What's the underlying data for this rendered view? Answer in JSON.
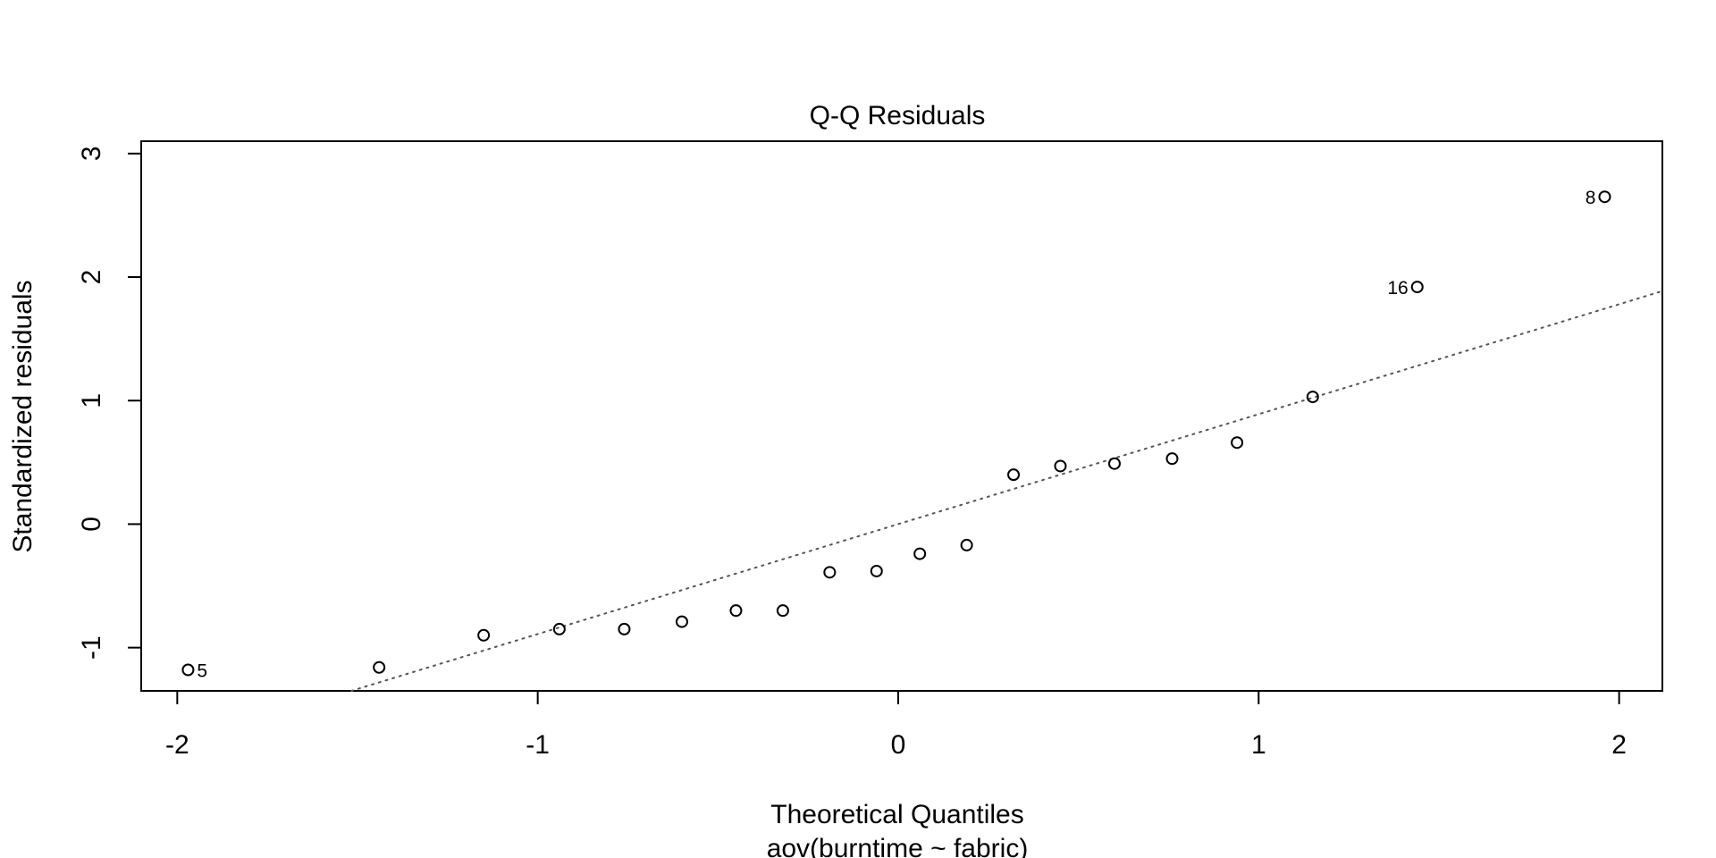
{
  "chart_data": {
    "type": "scatter",
    "title": "Q-Q Residuals",
    "xlabel": "Theoretical Quantiles",
    "xlabel_sub": "aov(burntime ~ fabric)",
    "ylabel": "Standardized residuals",
    "xlim": [
      -2.1,
      2.12
    ],
    "ylim": [
      -1.35,
      3.1
    ],
    "x_ticks": [
      -2,
      -1,
      0,
      1,
      2
    ],
    "x_tick_labels": [
      "-2",
      "-1",
      "0",
      "1",
      "2"
    ],
    "y_ticks": [
      -1,
      0,
      1,
      2,
      3
    ],
    "y_tick_labels": [
      "-1",
      "0",
      "1",
      "2",
      "3"
    ],
    "reference_line": {
      "style": "dotted",
      "color": "#555555",
      "intercept": 0.0,
      "slope": 0.89
    },
    "points": [
      {
        "x": -1.97,
        "y": -1.18,
        "label": "5"
      },
      {
        "x": -1.44,
        "y": -1.16,
        "label": ""
      },
      {
        "x": -1.15,
        "y": -0.9,
        "label": ""
      },
      {
        "x": -0.94,
        "y": -0.85,
        "label": ""
      },
      {
        "x": -0.76,
        "y": -0.85,
        "label": ""
      },
      {
        "x": -0.6,
        "y": -0.79,
        "label": ""
      },
      {
        "x": -0.45,
        "y": -0.7,
        "label": ""
      },
      {
        "x": -0.32,
        "y": -0.7,
        "label": ""
      },
      {
        "x": -0.19,
        "y": -0.39,
        "label": ""
      },
      {
        "x": -0.06,
        "y": -0.38,
        "label": ""
      },
      {
        "x": 0.06,
        "y": -0.24,
        "label": ""
      },
      {
        "x": 0.19,
        "y": -0.17,
        "label": ""
      },
      {
        "x": 0.32,
        "y": 0.4,
        "label": ""
      },
      {
        "x": 0.45,
        "y": 0.47,
        "label": ""
      },
      {
        "x": 0.6,
        "y": 0.49,
        "label": ""
      },
      {
        "x": 0.76,
        "y": 0.53,
        "label": ""
      },
      {
        "x": 0.94,
        "y": 0.66,
        "label": ""
      },
      {
        "x": 1.15,
        "y": 1.03,
        "label": ""
      },
      {
        "x": 1.44,
        "y": 1.92,
        "label": "16"
      },
      {
        "x": 1.96,
        "y": 2.65,
        "label": "8"
      }
    ],
    "grid": false,
    "legend": "none"
  }
}
